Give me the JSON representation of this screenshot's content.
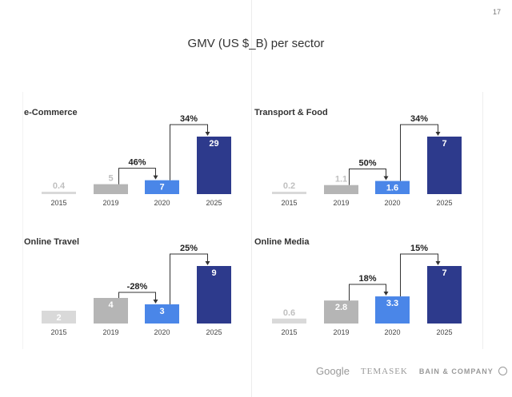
{
  "page_number": "17",
  "title": "GMV (US $_B) per sector",
  "logos": {
    "google": "Google",
    "temasek": "TEMASEK",
    "bain": "BAIN & COMPANY"
  },
  "colors": {
    "2015": "#d9d9d9",
    "2019": "#b5b5b5",
    "2020": "#4a86e8",
    "2025": "#2d3a8c"
  },
  "chart_data": [
    {
      "type": "bar",
      "title": "e-Commerce",
      "categories": [
        "2015",
        "2019",
        "2020",
        "2025"
      ],
      "values": [
        0.4,
        5,
        7,
        29
      ],
      "labels": [
        "0.4",
        "5",
        "7",
        "29"
      ],
      "growth": [
        {
          "from": "2019",
          "to": "2020",
          "label": "46%"
        },
        {
          "from": "2020",
          "to": "2025",
          "label": "34%"
        }
      ]
    },
    {
      "type": "bar",
      "title": "Transport & Food",
      "categories": [
        "2015",
        "2019",
        "2020",
        "2025"
      ],
      "values": [
        0.2,
        1.1,
        1.6,
        7
      ],
      "labels": [
        "0.2",
        "1.1",
        "1.6",
        "7"
      ],
      "growth": [
        {
          "from": "2019",
          "to": "2020",
          "label": "50%"
        },
        {
          "from": "2020",
          "to": "2025",
          "label": "34%"
        }
      ]
    },
    {
      "type": "bar",
      "title": "Online Travel",
      "categories": [
        "2015",
        "2019",
        "2020",
        "2025"
      ],
      "values": [
        2,
        4,
        3,
        9
      ],
      "labels": [
        "2",
        "4",
        "3",
        "9"
      ],
      "growth": [
        {
          "from": "2019",
          "to": "2020",
          "label": "-28%"
        },
        {
          "from": "2020",
          "to": "2025",
          "label": "25%"
        }
      ]
    },
    {
      "type": "bar",
      "title": "Online Media",
      "categories": [
        "2015",
        "2019",
        "2020",
        "2025"
      ],
      "values": [
        0.6,
        2.8,
        3.3,
        7
      ],
      "labels": [
        "0.6",
        "2.8",
        "3.3",
        "7"
      ],
      "growth": [
        {
          "from": "2019",
          "to": "2020",
          "label": "18%"
        },
        {
          "from": "2020",
          "to": "2025",
          "label": "15%"
        }
      ]
    }
  ]
}
